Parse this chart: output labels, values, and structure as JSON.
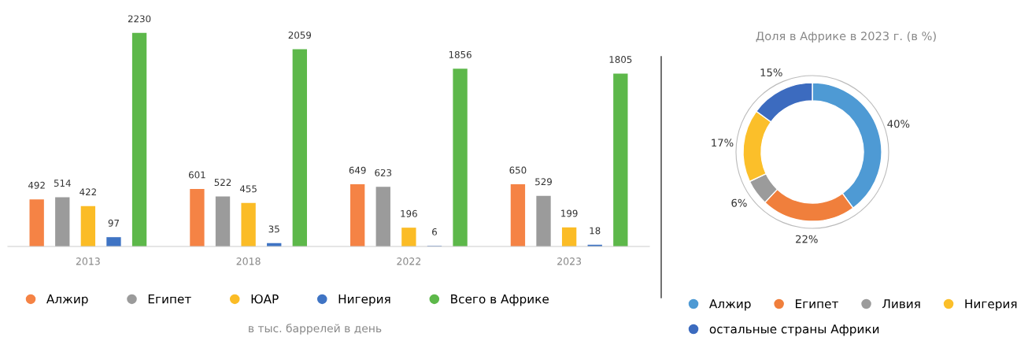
{
  "chart_data": [
    {
      "type": "bar",
      "categories": [
        "2013",
        "2018",
        "2022",
        "2023"
      ],
      "series": [
        {
          "name": "Алжир",
          "color": "#f58345",
          "values": [
            492,
            601,
            649,
            650
          ]
        },
        {
          "name": "Египет",
          "color": "#9b9b9b",
          "values": [
            514,
            522,
            623,
            529
          ]
        },
        {
          "name": "ЮАР",
          "color": "#fbbc26",
          "values": [
            422,
            455,
            196,
            199
          ]
        },
        {
          "name": "Нигерия",
          "color": "#3f74c4",
          "values": [
            97,
            35,
            6,
            18
          ]
        },
        {
          "name": "Всего в Африке",
          "color": "#5db84a",
          "values": [
            2230,
            2059,
            1856,
            1805
          ]
        }
      ],
      "data_labels": true,
      "legend": "bottom",
      "grid": false,
      "annotations": [
        "в тыс. баррелей в день"
      ]
    },
    {
      "type": "donut",
      "title": "Доля в Африке в 2023 г. (в %)",
      "categories": [
        "Алжир",
        "Египет",
        "Ливия",
        "Нигерия",
        "остальные страны Африки"
      ],
      "values": [
        40,
        22,
        6,
        17,
        15
      ],
      "colors": [
        "#4e9ad4",
        "#f07f3c",
        "#9b9b9b",
        "#fbbf2a",
        "#3c6bbf"
      ],
      "value_labels": [
        "40%",
        "22%",
        "6%",
        "17%",
        "15%"
      ],
      "legend": "bottom"
    }
  ]
}
